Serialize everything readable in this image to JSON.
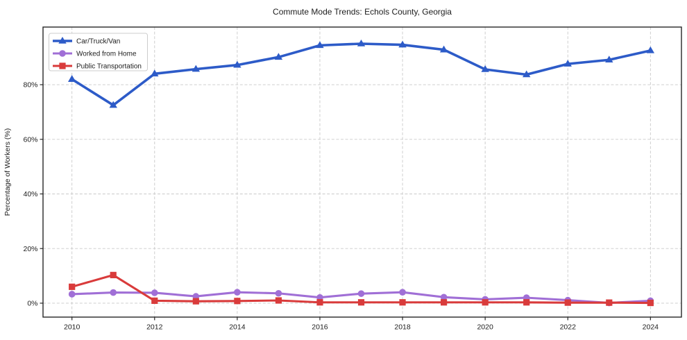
{
  "chart_data": {
    "type": "line",
    "title": "Commute Mode Trends: Echols County, Georgia",
    "xlabel": "",
    "ylabel": "Percentage of Workers (%)",
    "x": [
      2010,
      2011,
      2012,
      2013,
      2014,
      2015,
      2016,
      2017,
      2018,
      2019,
      2020,
      2021,
      2022,
      2023,
      2024
    ],
    "series": [
      {
        "name": "Car/Truck/Van",
        "color": "#2d5bc8",
        "marker": "triangle",
        "values": [
          82.0,
          72.5,
          84.0,
          85.7,
          87.2,
          90.1,
          94.4,
          95.0,
          94.6,
          92.8,
          85.6,
          83.7,
          87.6,
          89.1,
          92.5
        ]
      },
      {
        "name": "Worked from Home",
        "color": "#a06fd6",
        "marker": "circle",
        "values": [
          3.3,
          3.9,
          3.8,
          2.5,
          4.0,
          3.6,
          2.1,
          3.5,
          4.0,
          2.2,
          1.4,
          2.0,
          1.1,
          0.1,
          0.9
        ]
      },
      {
        "name": "Public Transportation",
        "color": "#d93b3b",
        "marker": "square",
        "values": [
          6.0,
          10.3,
          0.9,
          0.7,
          0.8,
          1.0,
          0.3,
          0.3,
          0.3,
          0.3,
          0.3,
          0.3,
          0.2,
          0.2,
          0.1
        ]
      }
    ],
    "xticks": [
      {
        "value": 2010,
        "label": "2010"
      },
      {
        "value": 2012,
        "label": "2012"
      },
      {
        "value": 2014,
        "label": "2014"
      },
      {
        "value": 2016,
        "label": "2016"
      },
      {
        "value": 2018,
        "label": "2018"
      },
      {
        "value": 2020,
        "label": "2020"
      },
      {
        "value": 2022,
        "label": "2022"
      },
      {
        "value": 2024,
        "label": "2024"
      }
    ],
    "yticks": [
      {
        "value": 0,
        "label": "0%"
      },
      {
        "value": 20,
        "label": "20%"
      },
      {
        "value": 40,
        "label": "40%"
      },
      {
        "value": 60,
        "label": "60%"
      },
      {
        "value": 80,
        "label": "80%"
      }
    ],
    "xlim": [
      2009.3,
      2024.75
    ],
    "ylim": [
      -5.1,
      101.1
    ],
    "grid": true,
    "legend_position": "upper-left",
    "colors": {
      "grid": "#c9c9c9",
      "axis_border": "#262626",
      "legend_border": "#cccccc",
      "background": "#ffffff",
      "text": "#1c1c1c"
    }
  }
}
